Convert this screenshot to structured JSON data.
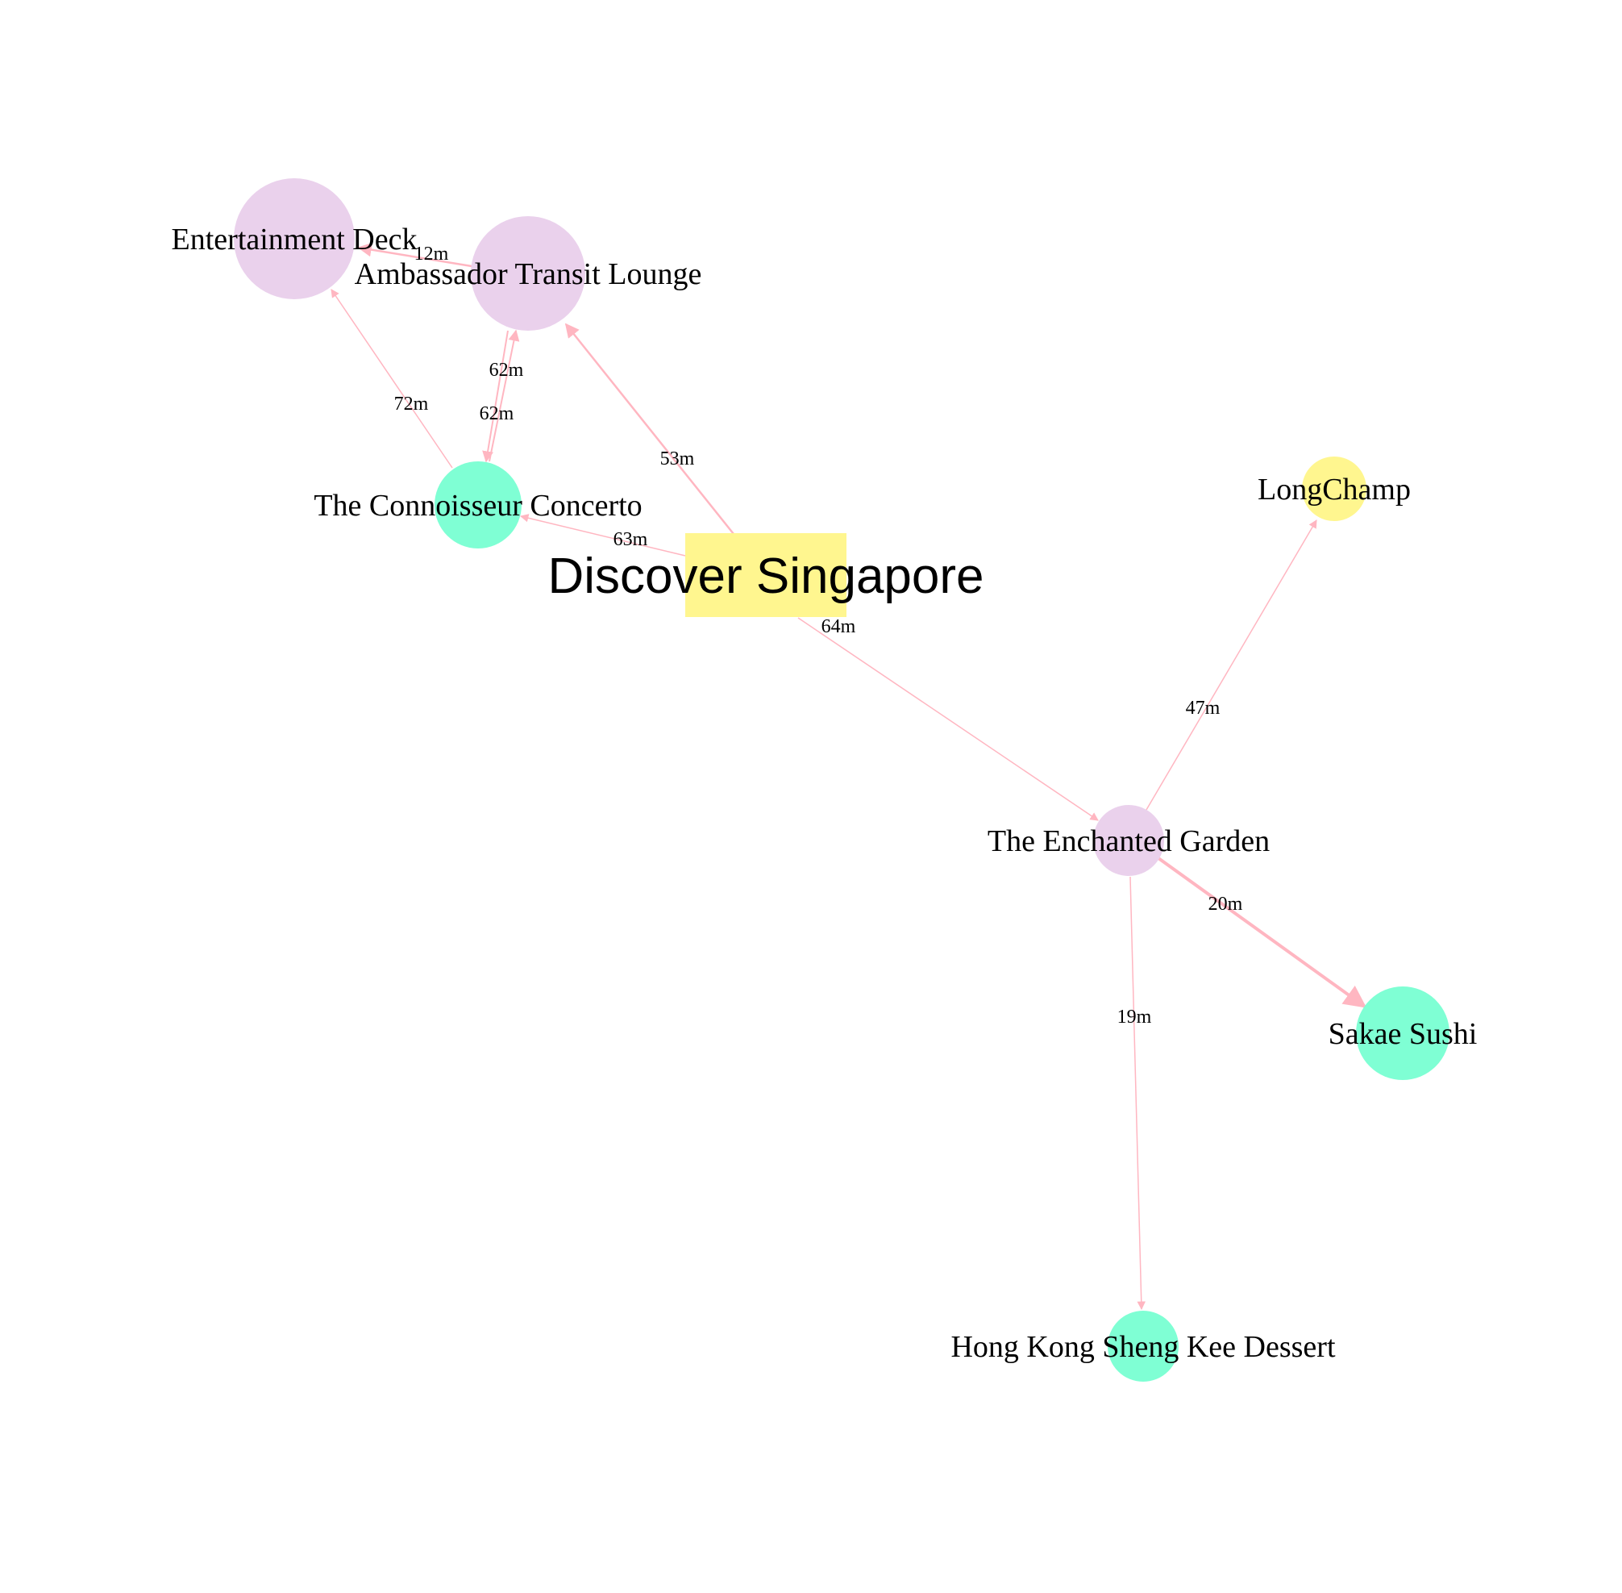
{
  "colors": {
    "background": "#ffffff",
    "edge": "#ffb6c1",
    "purple_node": "#ead1ec",
    "green_node": "#7fffd4",
    "yellow_node": "#fff68f"
  },
  "graph": {
    "nodes": [
      {
        "id": "discover",
        "label": "Discover Singapore",
        "shape": "box",
        "color_key": "yellow_node",
        "emphasis": "title"
      },
      {
        "id": "entertainment",
        "label": "Entertainment Deck",
        "shape": "circle",
        "color_key": "purple_node"
      },
      {
        "id": "ambassador",
        "label": "Ambassador Transit Lounge",
        "shape": "circle",
        "color_key": "purple_node"
      },
      {
        "id": "connoisseur",
        "label": "The Connoisseur Concerto",
        "shape": "circle",
        "color_key": "green_node"
      },
      {
        "id": "longchamp",
        "label": "LongChamp",
        "shape": "circle",
        "color_key": "yellow_node"
      },
      {
        "id": "enchanted",
        "label": "The Enchanted Garden",
        "shape": "circle",
        "color_key": "purple_node"
      },
      {
        "id": "sakae",
        "label": "Sakae Sushi",
        "shape": "circle",
        "color_key": "green_node"
      },
      {
        "id": "hongkong",
        "label": "Hong Kong Sheng Kee Dessert",
        "shape": "circle",
        "color_key": "green_node"
      }
    ],
    "edges": [
      {
        "from": "ambassador",
        "to": "entertainment",
        "label": "12m"
      },
      {
        "from": "connoisseur",
        "to": "entertainment",
        "label": "72m"
      },
      {
        "from": "connoisseur",
        "to": "ambassador",
        "label": "62m"
      },
      {
        "from": "ambassador",
        "to": "connoisseur",
        "label": "62m"
      },
      {
        "from": "discover",
        "to": "ambassador",
        "label": "53m"
      },
      {
        "from": "discover",
        "to": "connoisseur",
        "label": "63m"
      },
      {
        "from": "discover",
        "to": "enchanted",
        "label": "64m"
      },
      {
        "from": "enchanted",
        "to": "longchamp",
        "label": "47m"
      },
      {
        "from": "enchanted",
        "to": "sakae",
        "label": "20m"
      },
      {
        "from": "enchanted",
        "to": "hongkong",
        "label": "19m"
      }
    ]
  }
}
